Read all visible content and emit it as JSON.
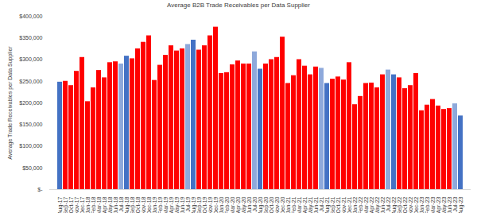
{
  "chart_data": {
    "type": "bar",
    "title": "Average B2B Trade Receivables per Data Supplier",
    "y_label": "Average Trade Receivables per Data Supplier",
    "categories": [
      "Aug-17",
      "Sep-17",
      "Oct-17",
      "Nov-17",
      "Dec-17",
      "Jan-18",
      "Feb-18",
      "Mar-18",
      "Apr-18",
      "May-18",
      "Jun-18",
      "Jul-18",
      "Aug-18",
      "Sep-18",
      "Oct-18",
      "Nov-18",
      "Dec-18",
      "Jan-19",
      "Feb-19",
      "Mar-19",
      "Apr-19",
      "May-19",
      "Jun-19",
      "Jul-19",
      "Aug-19",
      "Sep-19",
      "Oct-19",
      "Nov-19",
      "Dec-19",
      "Jan-20",
      "Feb-20",
      "Mar-20",
      "Apr-20",
      "May-20",
      "Jun-20",
      "Jul-20",
      "Aug-20",
      "Sep-20",
      "Oct-20",
      "Nov-20",
      "Dec-20",
      "Jan-21",
      "Feb-21",
      "Mar-21",
      "Apr-21",
      "May-21",
      "Jun-21",
      "Jul-21",
      "Aug-21",
      "Sep-21",
      "Oct-21",
      "Nov-21",
      "Dec-21",
      "Jan-22",
      "Feb-22",
      "Mar-22",
      "Apr-22",
      "May-22",
      "Jun-22",
      "Jul-22",
      "Aug-22",
      "Sep-22",
      "Oct-22",
      "Nov-22",
      "Dec-22",
      "Jan-23",
      "Feb-23",
      "Mar-23",
      "Apr-23",
      "May-23",
      "Jun-23",
      "Jul-23",
      "Aug-23"
    ],
    "values": [
      248000,
      250000,
      240000,
      273000,
      305000,
      203000,
      235000,
      275000,
      258000,
      293000,
      295000,
      290000,
      308000,
      302000,
      325000,
      340000,
      355000,
      252000,
      287000,
      310000,
      332000,
      320000,
      325000,
      335000,
      345000,
      322000,
      332000,
      355000,
      375000,
      268000,
      270000,
      288000,
      297000,
      290000,
      290000,
      318000,
      278000,
      290000,
      300000,
      305000,
      352000,
      245000,
      263000,
      300000,
      285000,
      265000,
      283000,
      280000,
      245000,
      255000,
      260000,
      253000,
      293000,
      196000,
      215000,
      245000,
      246000,
      235000,
      265000,
      276000,
      265000,
      258000,
      233000,
      240000,
      268000,
      182000,
      195000,
      208000,
      193000,
      185000,
      187000,
      198000,
      170000
    ],
    "colors": [
      "#4472c4",
      "#ff0000",
      "#ff0000",
      "#ff0000",
      "#ff0000",
      "#ff0000",
      "#ff0000",
      "#ff0000",
      "#ff0000",
      "#ff0000",
      "#ff0000",
      "#8ea9db",
      "#4472c4",
      "#ff0000",
      "#ff0000",
      "#ff0000",
      "#ff0000",
      "#ff0000",
      "#ff0000",
      "#ff0000",
      "#ff0000",
      "#ff0000",
      "#ff0000",
      "#8ea9db",
      "#4472c4",
      "#ff0000",
      "#ff0000",
      "#ff0000",
      "#ff0000",
      "#ff0000",
      "#ff0000",
      "#ff0000",
      "#ff0000",
      "#ff0000",
      "#ff0000",
      "#8ea9db",
      "#4472c4",
      "#ff0000",
      "#ff0000",
      "#ff0000",
      "#ff0000",
      "#ff0000",
      "#ff0000",
      "#ff0000",
      "#ff0000",
      "#ff0000",
      "#ff0000",
      "#8ea9db",
      "#4472c4",
      "#ff0000",
      "#ff0000",
      "#ff0000",
      "#ff0000",
      "#ff0000",
      "#ff0000",
      "#ff0000",
      "#ff0000",
      "#ff0000",
      "#ff0000",
      "#8ea9db",
      "#4472c4",
      "#ff0000",
      "#ff0000",
      "#ff0000",
      "#ff0000",
      "#ff0000",
      "#ff0000",
      "#ff0000",
      "#ff0000",
      "#ff0000",
      "#ff0000",
      "#8ea9db",
      "#4472c4"
    ],
    "ylim": [
      0,
      400000
    ],
    "yticks": [
      {
        "value": 0,
        "label": "$-"
      },
      {
        "value": 50000,
        "label": "$50,000"
      },
      {
        "value": 100000,
        "label": "$100,000"
      },
      {
        "value": 150000,
        "label": "$150,000"
      },
      {
        "value": 200000,
        "label": "$200,000"
      },
      {
        "value": 250000,
        "label": "$250,000"
      },
      {
        "value": 300000,
        "label": "$300,000"
      },
      {
        "value": 350000,
        "label": "$350,000"
      },
      {
        "value": 400000,
        "label": "$400,000"
      }
    ],
    "grid": false
  }
}
